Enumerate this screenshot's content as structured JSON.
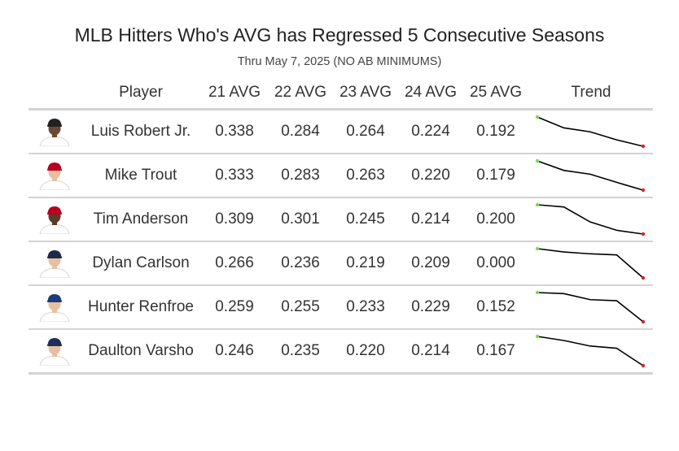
{
  "chart_data": {
    "type": "table",
    "title": "MLB Hitters Who's AVG has Regressed 5 Consecutive Seasons",
    "subtitle": "Thru May 7, 2025 (NO AB MINIMUMS)",
    "columns": [
      "Player",
      "21 AVG",
      "22 AVG",
      "23 AVG",
      "24 AVG",
      "25 AVG",
      "Trend"
    ],
    "rows": [
      {
        "player": "Luis Robert Jr.",
        "values": [
          "0.338",
          "0.284",
          "0.264",
          "0.224",
          "0.192"
        ],
        "avg": [
          0.338,
          0.284,
          0.264,
          0.224,
          0.192
        ],
        "jersey": "#ffffff",
        "cap": "#222222",
        "skin": "#6b4a35"
      },
      {
        "player": "Mike Trout",
        "values": [
          "0.333",
          "0.283",
          "0.263",
          "0.220",
          "0.179"
        ],
        "avg": [
          0.333,
          0.283,
          0.263,
          0.22,
          0.179
        ],
        "jersey": "#ffffff",
        "cap": "#ba0021",
        "skin": "#e8c0a0"
      },
      {
        "player": "Tim Anderson",
        "values": [
          "0.309",
          "0.301",
          "0.245",
          "0.214",
          "0.200"
        ],
        "avg": [
          0.309,
          0.301,
          0.245,
          0.214,
          0.2
        ],
        "jersey": "#ffffff",
        "cap": "#ba0021",
        "skin": "#5a3a28"
      },
      {
        "player": "Dylan Carlson",
        "values": [
          "0.266",
          "0.236",
          "0.219",
          "0.209",
          "0.000"
        ],
        "avg": [
          0.266,
          0.236,
          0.219,
          0.209,
          0.0
        ],
        "jersey": "#ffffff",
        "cap": "#1e2a4a",
        "skin": "#e8c0a0"
      },
      {
        "player": "Hunter Renfroe",
        "values": [
          "0.259",
          "0.255",
          "0.233",
          "0.229",
          "0.152"
        ],
        "avg": [
          0.259,
          0.255,
          0.233,
          0.229,
          0.152
        ],
        "jersey": "#ffffff",
        "cap": "#1a3d7c",
        "skin": "#e8c0a0"
      },
      {
        "player": "Daulton Varsho",
        "values": [
          "0.246",
          "0.235",
          "0.220",
          "0.214",
          "0.167"
        ],
        "avg": [
          0.246,
          0.235,
          0.22,
          0.214,
          0.167
        ],
        "jersey": "#ffffff",
        "cap": "#1d2d5c",
        "skin": "#e8c0a0"
      }
    ],
    "trend_start_color": "#7ed957",
    "trend_end_color": "#d62728",
    "line_color": "#000000",
    "grid": false
  }
}
